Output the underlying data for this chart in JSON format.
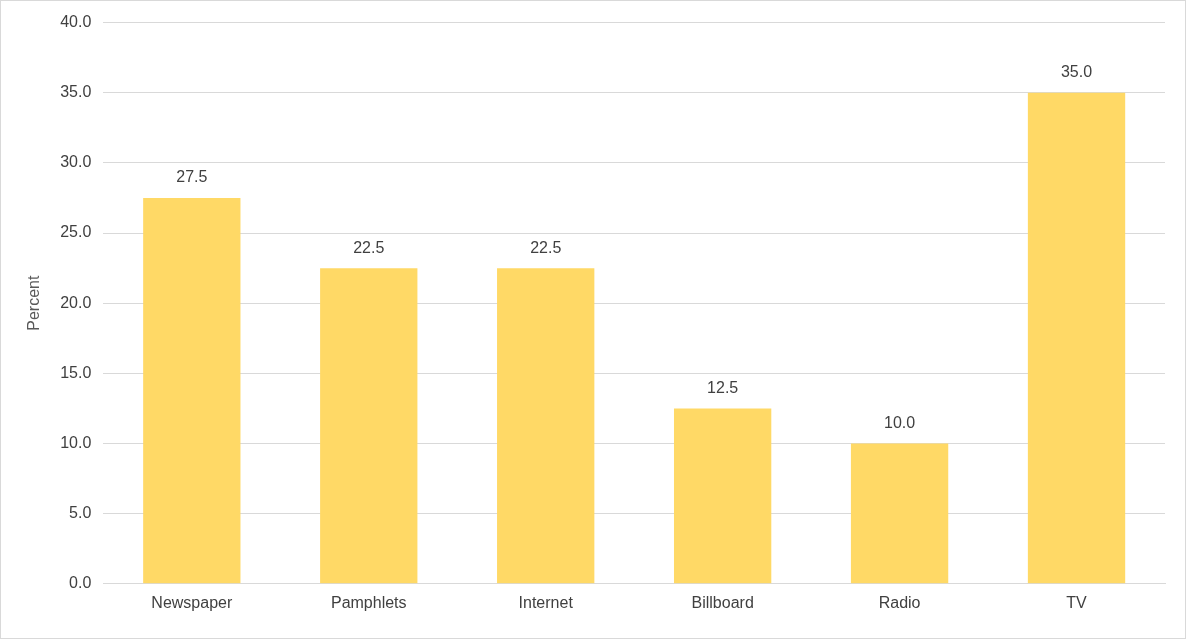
{
  "chart_data": {
    "type": "bar",
    "ylabel": "Percent",
    "categories": [
      "Newspaper",
      "Pamphlets",
      "Internet",
      "Billboard",
      "Radio",
      "TV"
    ],
    "values": [
      27.5,
      22.5,
      22.5,
      12.5,
      10,
      35
    ],
    "value_labels": [
      "27.5",
      "22.5",
      "22.5",
      "12.5",
      "10.0",
      "35.0"
    ],
    "color": "#ffd966",
    "ylim": [
      0,
      40
    ],
    "yticks": [
      {
        "value": 0,
        "label": "0.0"
      },
      {
        "value": 5,
        "label": "5.0"
      },
      {
        "value": 10,
        "label": "10.0"
      },
      {
        "value": 15,
        "label": "15.0"
      },
      {
        "value": 20,
        "label": "20.0"
      },
      {
        "value": 25,
        "label": "25.0"
      },
      {
        "value": 30,
        "label": "30.0"
      },
      {
        "value": 35,
        "label": "35.0"
      },
      {
        "value": 40,
        "label": "40.0"
      }
    ],
    "grid": "y",
    "legend": false
  }
}
